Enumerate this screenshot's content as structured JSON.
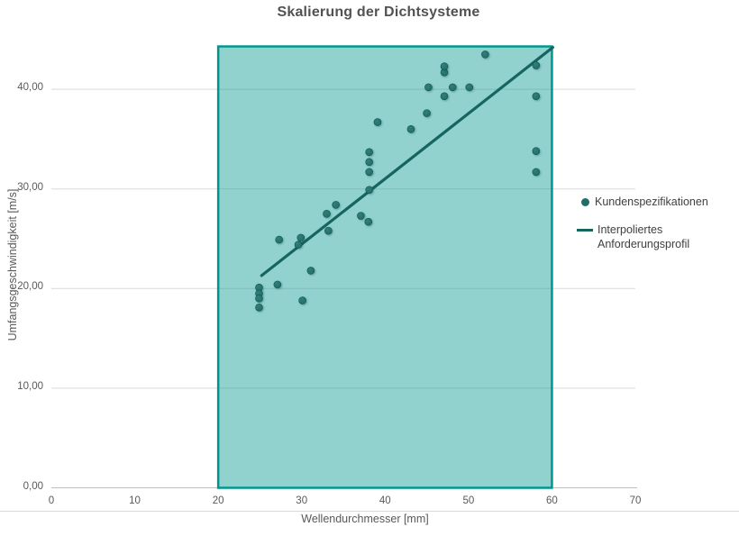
{
  "title": "Skalierung der Dichtsysteme",
  "colors": {
    "point": "#1f6e69",
    "point_edge": "#14564f",
    "trend_line": "#17655f",
    "region_fill": "#0f9d97",
    "region_border": "#00968f",
    "gridline": "#d9d9d9",
    "axis_line": "#bfbfbf",
    "title_text": "#525252",
    "tick_text": "#595959",
    "legend_text": "#404040"
  },
  "legend": {
    "items": [
      {
        "label": "Kundenspezifikationen",
        "marker": "dot"
      },
      {
        "label": "Interpoliertes Anforderungsprofil",
        "marker": "line"
      }
    ]
  },
  "chart_data": {
    "type": "scatter",
    "title": "Skalierung der Dichtsysteme",
    "xlabel": "Wellendurchmesser [mm]",
    "ylabel": "Umfangsgeschwindigkeit [m/s]",
    "xlim": [
      0,
      70
    ],
    "ylim": [
      0,
      45
    ],
    "grid": "horizontal",
    "legend_position": "right",
    "x_ticks": {
      "values": [
        0,
        10,
        20,
        30,
        40,
        50,
        60,
        70
      ],
      "labels": [
        "0",
        "10",
        "20",
        "30",
        "40",
        "50",
        "60",
        "70"
      ]
    },
    "y_ticks": {
      "values": [
        0,
        10,
        20,
        30,
        40
      ],
      "labels": [
        "0,00",
        "10,00",
        "20,00",
        "30,00",
        "40,00"
      ]
    },
    "highlight_region": {
      "x_min": 20,
      "x_max": 60,
      "y_min": 0,
      "y_max": 44.3
    },
    "series": [
      {
        "name": "Kundenspezifikationen",
        "type": "scatter",
        "points": [
          [
            24.9,
            20.1
          ],
          [
            24.9,
            19.5
          ],
          [
            24.9,
            19.0
          ],
          [
            24.9,
            18.1
          ],
          [
            27.1,
            20.4
          ],
          [
            27.3,
            24.9
          ],
          [
            29.6,
            24.4
          ],
          [
            29.9,
            25.1
          ],
          [
            30.1,
            18.8
          ],
          [
            31.1,
            21.8
          ],
          [
            33.0,
            27.5
          ],
          [
            33.2,
            25.8
          ],
          [
            34.1,
            28.4
          ],
          [
            37.1,
            27.3
          ],
          [
            38.0,
            26.7
          ],
          [
            38.1,
            29.9
          ],
          [
            38.1,
            31.7
          ],
          [
            38.1,
            32.7
          ],
          [
            38.1,
            33.7
          ],
          [
            39.1,
            36.7
          ],
          [
            43.1,
            36.0
          ],
          [
            45.0,
            37.6
          ],
          [
            45.2,
            40.2
          ],
          [
            47.1,
            39.3
          ],
          [
            47.1,
            41.7
          ],
          [
            47.1,
            42.3
          ],
          [
            48.1,
            40.2
          ],
          [
            50.1,
            40.2
          ],
          [
            52.0,
            43.5
          ],
          [
            58.1,
            31.7
          ],
          [
            58.1,
            33.8
          ],
          [
            58.1,
            39.3
          ],
          [
            58.1,
            42.4
          ]
        ]
      },
      {
        "name": "Interpoliertes Anforderungsprofil",
        "type": "line",
        "points": [
          [
            25.2,
            21.3
          ],
          [
            60.1,
            44.2
          ]
        ]
      }
    ]
  }
}
